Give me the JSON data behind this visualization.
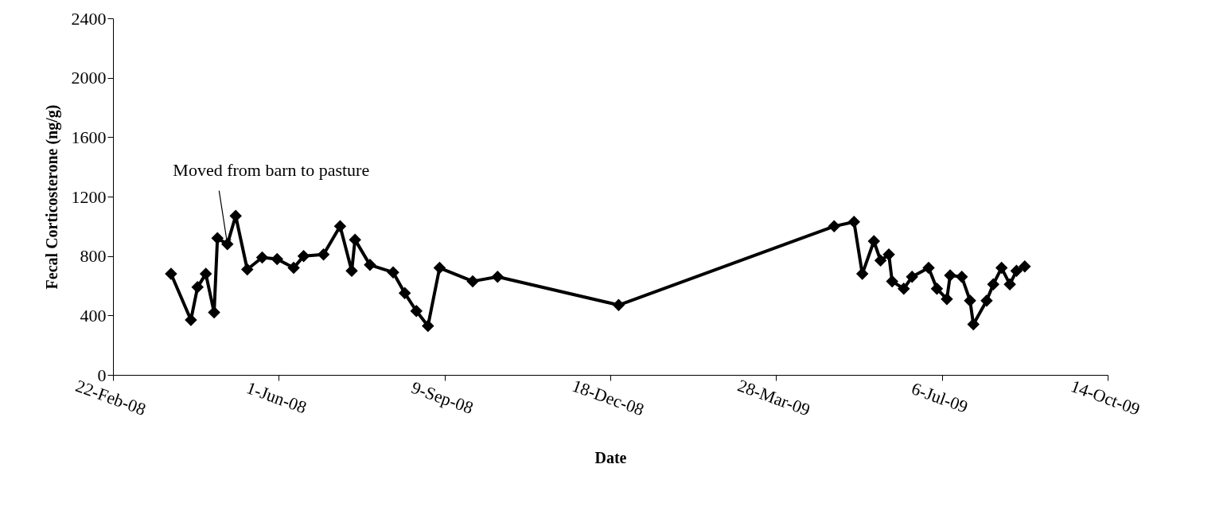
{
  "chart_data": {
    "type": "line",
    "xlabel": "Date",
    "ylabel": "Fecal Corticosterone (ng/g)",
    "x": [
      "2008-03-28",
      "2008-04-09",
      "2008-04-13",
      "2008-04-18",
      "2008-04-23",
      "2008-04-25",
      "2008-05-01",
      "2008-05-06",
      "2008-05-13",
      "2008-05-22",
      "2008-05-31",
      "2008-06-10",
      "2008-06-16",
      "2008-06-28",
      "2008-07-08",
      "2008-07-15",
      "2008-07-17",
      "2008-07-26",
      "2008-08-09",
      "2008-08-16",
      "2008-08-23",
      "2008-08-30",
      "2008-09-06",
      "2008-09-26",
      "2008-10-11",
      "2008-12-23",
      "2009-05-02",
      "2009-05-14",
      "2009-05-19",
      "2009-05-26",
      "2009-05-30",
      "2009-06-04",
      "2009-06-06",
      "2009-06-13",
      "2009-06-18",
      "2009-06-28",
      "2009-07-03",
      "2009-07-09",
      "2009-07-11",
      "2009-07-18",
      "2009-07-23",
      "2009-07-25",
      "2009-08-02",
      "2009-08-06",
      "2009-08-11",
      "2009-08-16",
      "2009-08-20",
      "2009-08-25"
    ],
    "series": [
      {
        "color": "#000000",
        "values": [
          680,
          370,
          590,
          680,
          420,
          920,
          880,
          1070,
          710,
          790,
          780,
          720,
          800,
          810,
          1000,
          700,
          910,
          740,
          690,
          550,
          430,
          330,
          720,
          630,
          660,
          470,
          1000,
          1030,
          680,
          900,
          770,
          810,
          630,
          580,
          660,
          720,
          580,
          510,
          670,
          660,
          500,
          340,
          500,
          610,
          720,
          610,
          700,
          730
        ]
      }
    ],
    "xlim": [
      "2008-02-22",
      "2009-10-14"
    ],
    "xticks": [
      {
        "value": "2008-02-22",
        "label": "22-Feb-08"
      },
      {
        "value": "2008-06-01",
        "label": "1-Jun-08"
      },
      {
        "value": "2008-09-09",
        "label": "9-Sep-08"
      },
      {
        "value": "2008-12-18",
        "label": "18-Dec-08"
      },
      {
        "value": "2009-03-28",
        "label": "28-Mar-09"
      },
      {
        "value": "2009-07-06",
        "label": "6-Jul-09"
      },
      {
        "value": "2009-10-14",
        "label": "14-Oct-09"
      }
    ],
    "ylim": [
      0,
      2400
    ],
    "yticks": [
      0,
      400,
      800,
      1200,
      1600,
      2000,
      2400
    ],
    "annotations": [
      {
        "text": "Moved from barn to pasture",
        "x": "2008-05-01",
        "y": 880
      }
    ],
    "marker": "diamond",
    "line_style": "solid",
    "grid": false
  }
}
